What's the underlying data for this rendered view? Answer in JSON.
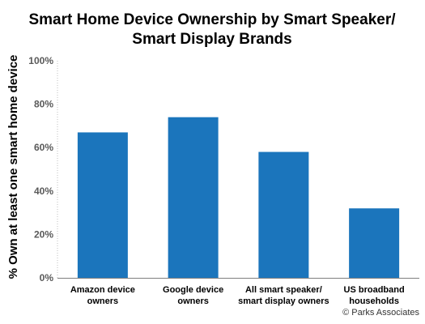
{
  "chart_data": {
    "type": "bar",
    "title_lines": [
      "Smart Home Device Ownership by Smart Speaker/",
      "Smart Display Brands"
    ],
    "ylabel": "% Own at least one smart home device",
    "xlabel": "",
    "ylim": [
      0,
      100
    ],
    "yticks": [
      "0%",
      "20%",
      "40%",
      "60%",
      "80%",
      "100%"
    ],
    "ytick_values": [
      0,
      20,
      40,
      60,
      80,
      100
    ],
    "grid": false,
    "categories": [
      [
        "Amazon device",
        "owners"
      ],
      [
        "Google device",
        "owners"
      ],
      [
        "All smart speaker/",
        "smart display owners"
      ],
      [
        "US broadband",
        "households"
      ]
    ],
    "values": [
      67,
      74,
      58,
      32
    ],
    "bar_color": "#1b75bc"
  },
  "credit": "© Parks Associates"
}
